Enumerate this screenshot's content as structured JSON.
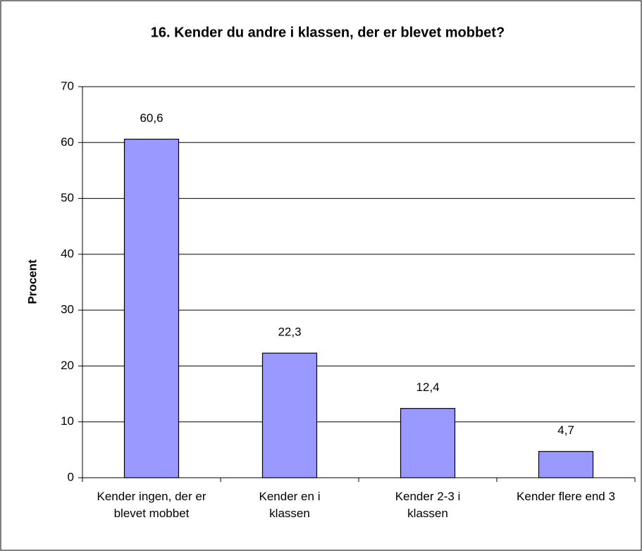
{
  "chart_data": {
    "type": "bar",
    "title": "16. Kender du andre i klassen, der er blevet mobbet?",
    "ylabel": "Procent",
    "categories": [
      "Kender ingen, der er blevet mobbet",
      "Kender en i klassen",
      "Kender 2-3 i klassen",
      "Kender flere end 3"
    ],
    "values": [
      60.6,
      22.3,
      12.4,
      4.7
    ],
    "value_labels": [
      "60,6",
      "22,3",
      "12,4",
      "4,7"
    ],
    "color": "#9999ff",
    "ylim": [
      0,
      70
    ],
    "yticks": [
      0,
      10,
      20,
      30,
      40,
      50,
      60,
      70
    ],
    "grid": true
  }
}
